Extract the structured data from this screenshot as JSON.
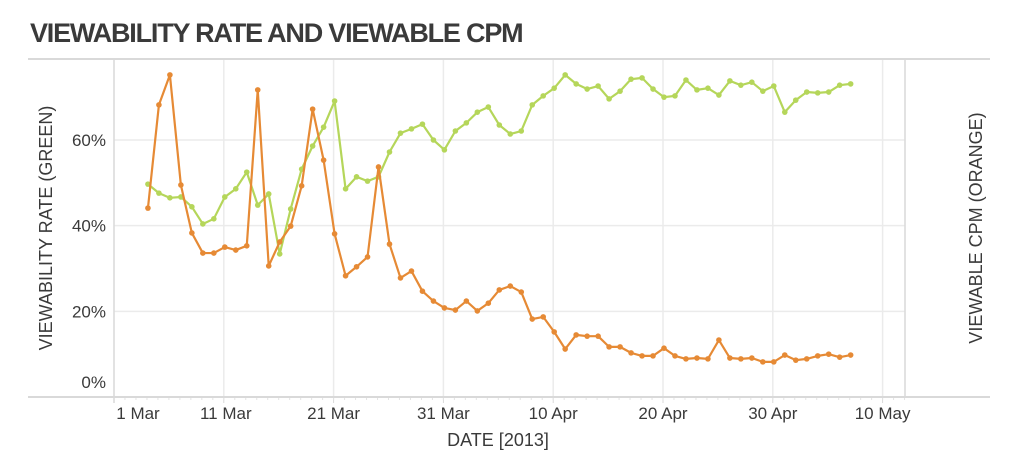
{
  "title": "VIEWABILITY RATE AND VIEWABLE CPM",
  "colors": {
    "green": "#b5d65a",
    "orange": "#e68a35",
    "grid": "#ebebeb",
    "axis": "#d9d9d9",
    "text": "#3a3a3a"
  },
  "chart_data": {
    "type": "line",
    "title": "VIEWABILITY RATE AND VIEWABLE CPM",
    "xlabel": "DATE [2013]",
    "ylabel": "VIEWABILITY RATE (GREEN)",
    "y2label": "VIEWABLE CPM (ORANGE)",
    "ylim": [
      0,
      80
    ],
    "yticks": [
      "0%",
      "20%",
      "40%",
      "60%"
    ],
    "ytick_values": [
      0,
      20,
      40,
      60
    ],
    "xticks": [
      "1 Mar",
      "11 Mar",
      "21 Mar",
      "31 Mar",
      "10 Apr",
      "20 Apr",
      "30 Apr",
      "10 May"
    ],
    "x_start": "2013-03-04",
    "x_end": "2013-05-07",
    "grid": true,
    "legend": "none (colors named in axis titles)",
    "series": [
      {
        "name": "Viewability Rate (green)",
        "axis": "left",
        "values": [
          49.7,
          47.6,
          46.5,
          46.7,
          44.4,
          40.4,
          41.6,
          46.7,
          48.6,
          52.5,
          44.8,
          47.4,
          33.4,
          43.9,
          53.2,
          58.6,
          63.0,
          69.1,
          48.6,
          51.4,
          50.4,
          51.4,
          57.2,
          61.6,
          62.6,
          63.7,
          60.0,
          57.7,
          62.1,
          64.0,
          66.5,
          67.7,
          63.5,
          61.4,
          62.1,
          68.2,
          70.3,
          72.1,
          75.2,
          73.1,
          71.9,
          72.6,
          69.6,
          71.4,
          74.2,
          74.5,
          71.9,
          70.0,
          70.3,
          74.0,
          71.7,
          72.1,
          70.5,
          73.8,
          72.8,
          73.5,
          71.4,
          72.6,
          66.5,
          69.3,
          71.2,
          71.0,
          71.2,
          72.8,
          73.1
        ]
      },
      {
        "name": "Viewable CPM (orange)",
        "axis": "right (unlabeled; values expressed on left-axis scale)",
        "values": [
          44.1,
          68.2,
          75.2,
          49.5,
          38.3,
          33.6,
          33.6,
          35.0,
          34.3,
          35.3,
          71.7,
          30.6,
          36.2,
          39.9,
          49.3,
          67.2,
          55.3,
          38.1,
          28.3,
          30.4,
          32.7,
          53.7,
          35.7,
          27.8,
          29.4,
          24.7,
          22.4,
          20.8,
          20.3,
          22.4,
          20.1,
          21.9,
          25.0,
          25.9,
          24.5,
          18.2,
          18.7,
          15.2,
          11.2,
          14.5,
          14.2,
          14.2,
          11.7,
          11.7,
          10.3,
          9.6,
          9.6,
          11.4,
          9.6,
          8.9,
          9.1,
          8.9,
          13.3,
          9.1,
          8.9,
          9.1,
          8.2,
          8.2,
          9.8,
          8.6,
          8.9,
          9.6,
          10.0,
          9.3,
          9.8
        ]
      }
    ]
  }
}
